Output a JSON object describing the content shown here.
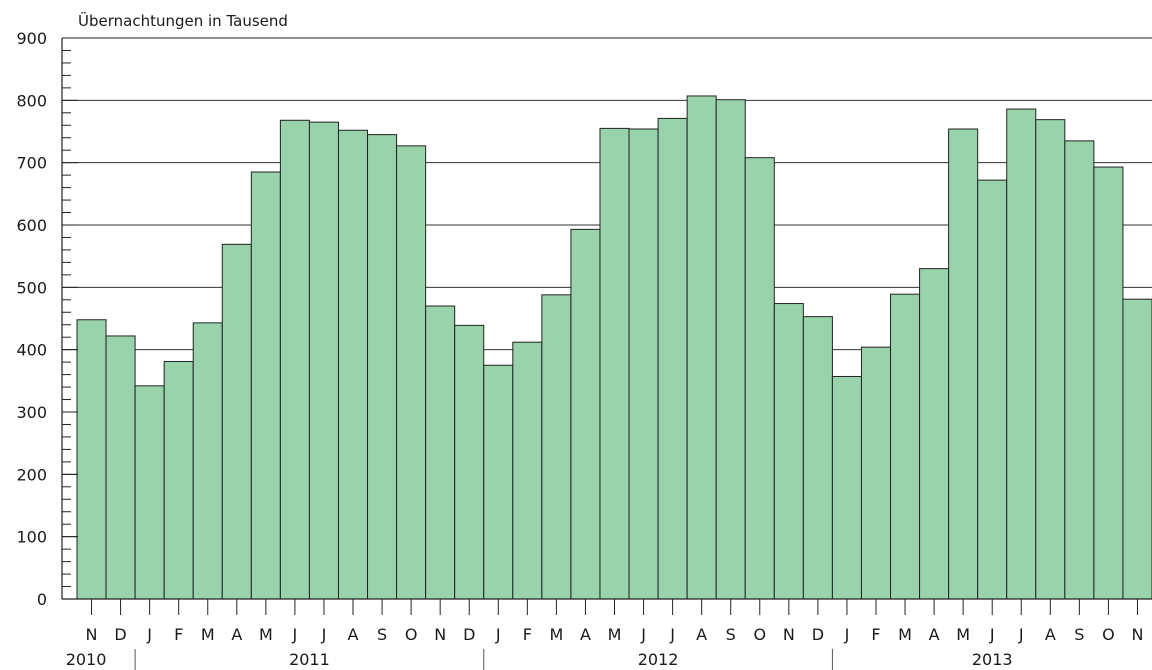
{
  "chart_data": {
    "type": "bar",
    "title": "",
    "ylabel": "Übernachtungen in Tausend",
    "xlabel": "",
    "ylim": [
      0,
      900
    ],
    "yticks": [
      0,
      100,
      200,
      300,
      400,
      500,
      600,
      700,
      800,
      900
    ],
    "grid": true,
    "categories": [
      "N",
      "D",
      "J",
      "F",
      "M",
      "A",
      "M",
      "J",
      "J",
      "A",
      "S",
      "O",
      "N",
      "D",
      "J",
      "F",
      "M",
      "A",
      "M",
      "J",
      "J",
      "A",
      "S",
      "O",
      "N",
      "D",
      "J",
      "F",
      "M",
      "A",
      "M",
      "J",
      "J",
      "A",
      "S",
      "O",
      "N"
    ],
    "values": [
      448,
      422,
      342,
      381,
      443,
      569,
      685,
      768,
      765,
      752,
      745,
      727,
      470,
      439,
      375,
      412,
      488,
      593,
      755,
      754,
      771,
      807,
      801,
      708,
      474,
      453,
      357,
      404,
      489,
      530,
      754,
      672,
      786,
      769,
      735,
      693,
      481
    ],
    "years": [
      {
        "label": "2010",
        "start": 0,
        "count": 2
      },
      {
        "label": "2011",
        "start": 2,
        "count": 12
      },
      {
        "label": "2012",
        "start": 14,
        "count": 12
      },
      {
        "label": "2013",
        "start": 26,
        "count": 11
      }
    ],
    "bar_color": "#99d3ab",
    "bar_edge_color": "#222222"
  }
}
